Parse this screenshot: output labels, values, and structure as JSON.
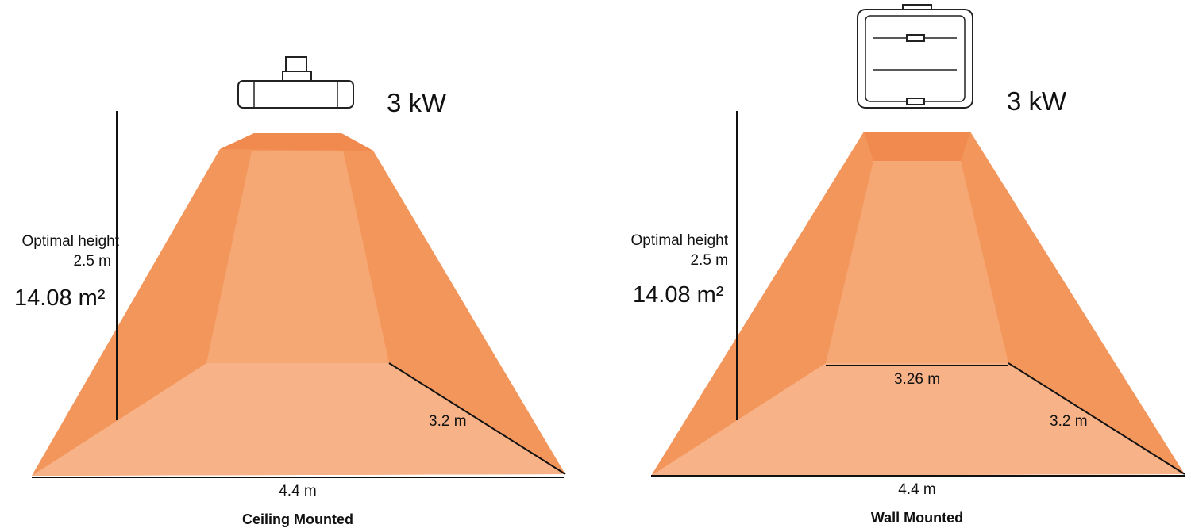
{
  "panels": [
    {
      "power": "3 kW",
      "height_label": "Optimal height",
      "height": "2.5 m",
      "area": "14.08 m²",
      "depth": "3.2 m",
      "width": "4.4 m",
      "caption": "Ceiling Mounted"
    },
    {
      "power": "3 kW",
      "height_label": "Optimal height",
      "height": "2.5 m",
      "area": "14.08 m²",
      "inner_width": "3.26 m",
      "depth": "3.2 m",
      "width": "4.4 m",
      "caption": "Wall Mounted"
    }
  ]
}
